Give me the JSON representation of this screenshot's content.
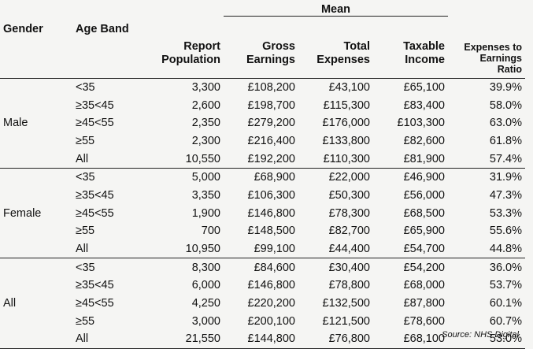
{
  "header": {
    "gender": "Gender",
    "age_band": "Age Band",
    "report_population": [
      "Report",
      "Population"
    ],
    "mean_group": "Mean",
    "gross_earnings": [
      "Gross",
      "Earnings"
    ],
    "total_expenses": [
      "Total",
      "Expenses"
    ],
    "taxable_income": [
      "Taxable",
      "Income"
    ],
    "expenses_ratio": [
      "Expenses to",
      "Earnings",
      "Ratio"
    ]
  },
  "groups": [
    {
      "gender": "Male",
      "rows": [
        {
          "age": "<35",
          "pop": "3,300",
          "gross": "£108,200",
          "exp": "£43,100",
          "tax": "£65,100",
          "ratio": "39.9%"
        },
        {
          "age": "≥35<45",
          "pop": "2,600",
          "gross": "£198,700",
          "exp": "£115,300",
          "tax": "£83,400",
          "ratio": "58.0%"
        },
        {
          "age": "≥45<55",
          "pop": "2,350",
          "gross": "£279,200",
          "exp": "£176,000",
          "tax": "£103,300",
          "ratio": "63.0%"
        },
        {
          "age": "≥55",
          "pop": "2,300",
          "gross": "£216,400",
          "exp": "£133,800",
          "tax": "£82,600",
          "ratio": "61.8%"
        },
        {
          "age": "All",
          "pop": "10,550",
          "gross": "£192,200",
          "exp": "£110,300",
          "tax": "£81,900",
          "ratio": "57.4%"
        }
      ]
    },
    {
      "gender": "Female",
      "rows": [
        {
          "age": "<35",
          "pop": "5,000",
          "gross": "£68,900",
          "exp": "£22,000",
          "tax": "£46,900",
          "ratio": "31.9%"
        },
        {
          "age": "≥35<45",
          "pop": "3,350",
          "gross": "£106,300",
          "exp": "£50,300",
          "tax": "£56,000",
          "ratio": "47.3%"
        },
        {
          "age": "≥45<55",
          "pop": "1,900",
          "gross": "£146,800",
          "exp": "£78,300",
          "tax": "£68,500",
          "ratio": "53.3%"
        },
        {
          "age": "≥55",
          "pop": "700",
          "gross": "£148,500",
          "exp": "£82,700",
          "tax": "£65,900",
          "ratio": "55.6%"
        },
        {
          "age": "All",
          "pop": "10,950",
          "gross": "£99,100",
          "exp": "£44,400",
          "tax": "£54,700",
          "ratio": "44.8%"
        }
      ]
    },
    {
      "gender": "All",
      "rows": [
        {
          "age": "<35",
          "pop": "8,300",
          "gross": "£84,600",
          "exp": "£30,400",
          "tax": "£54,200",
          "ratio": "36.0%"
        },
        {
          "age": "≥35<45",
          "pop": "6,000",
          "gross": "£146,800",
          "exp": "£78,800",
          "tax": "£68,000",
          "ratio": "53.7%"
        },
        {
          "age": "≥45<55",
          "pop": "4,250",
          "gross": "£220,200",
          "exp": "£132,500",
          "tax": "£87,800",
          "ratio": "60.1%"
        },
        {
          "age": "≥55",
          "pop": "3,000",
          "gross": "£200,100",
          "exp": "£121,500",
          "tax": "£78,600",
          "ratio": "60.7%"
        },
        {
          "age": "All",
          "pop": "21,550",
          "gross": "£144,800",
          "exp": "£76,800",
          "tax": "£68,100",
          "ratio": "53.0%"
        }
      ]
    }
  ],
  "source": "Source: NHS Digital"
}
